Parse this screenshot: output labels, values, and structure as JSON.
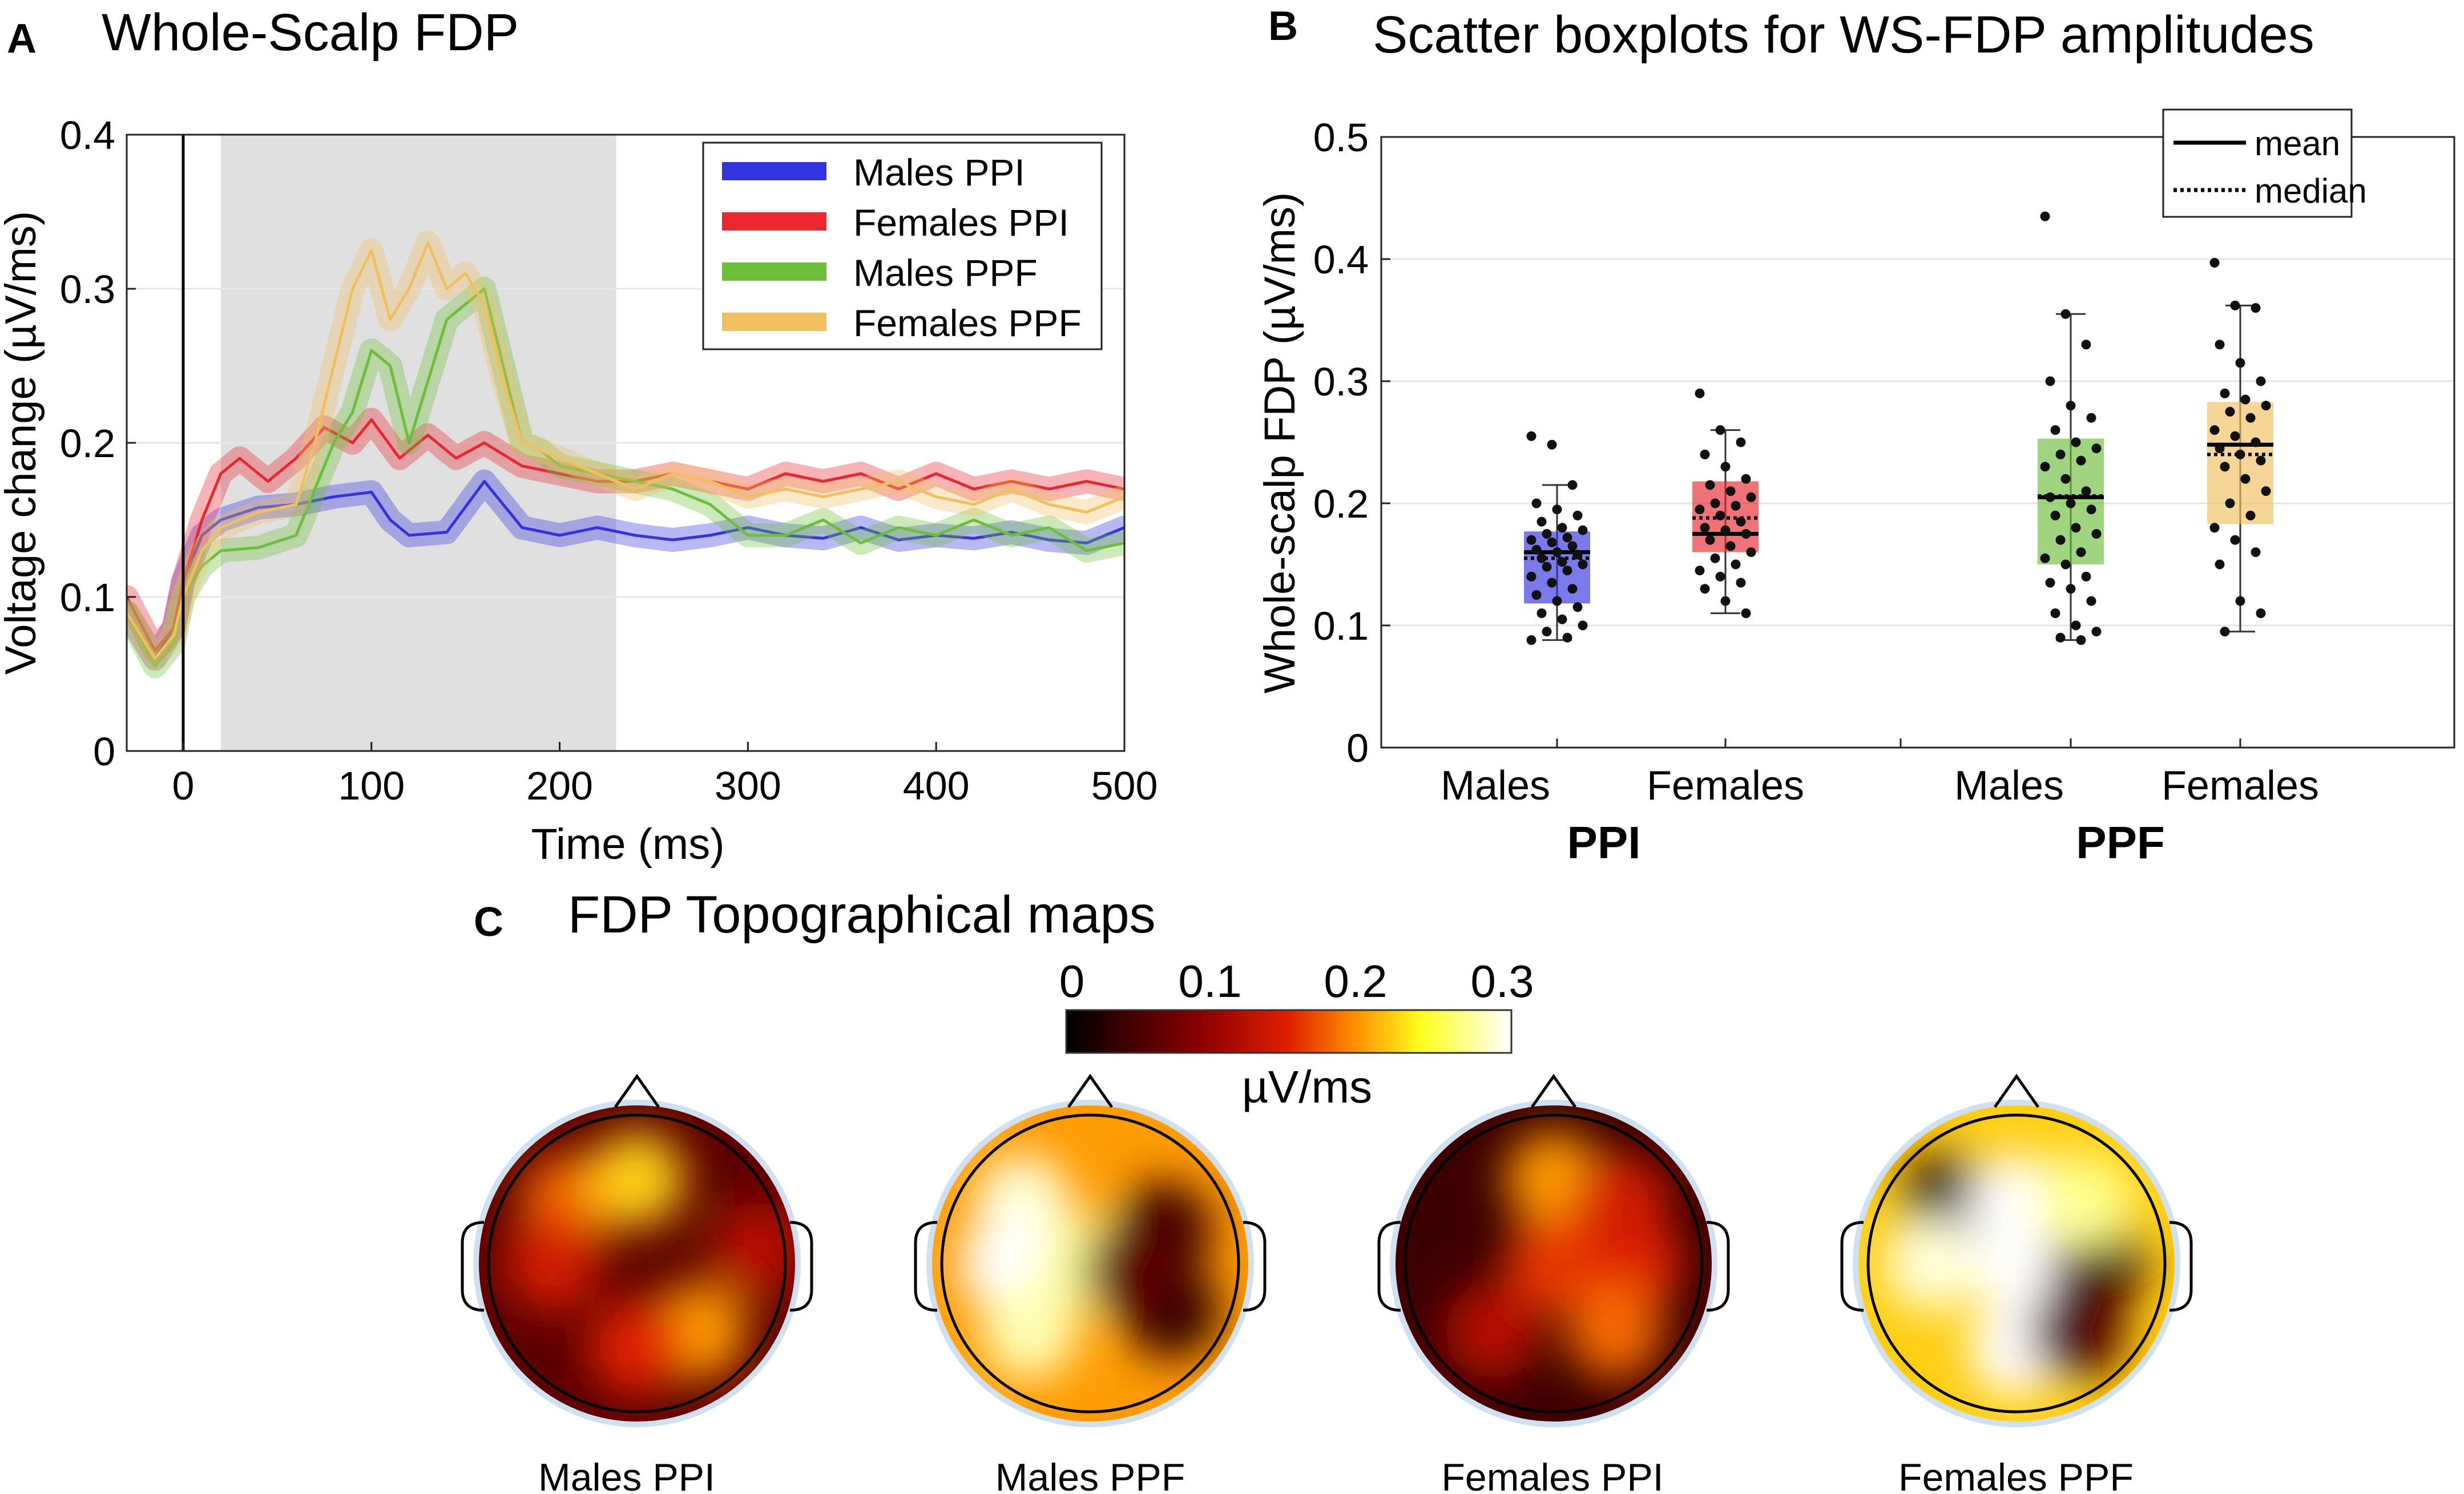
{
  "panels": {
    "a": {
      "letter": "A",
      "title": "Whole-Scalp FDP"
    },
    "b": {
      "letter": "B",
      "title": "Scatter boxplots for WS-FDP amplitudes"
    },
    "c": {
      "letter": "C",
      "title": "FDP Topographical maps"
    }
  },
  "colors": {
    "males_ppi": "#3333e0",
    "females_ppi": "#e8282e",
    "males_ppf": "#6cbf3a",
    "females_ppf": "#f0c060",
    "shade": "#e0e0e0"
  },
  "chart_data": [
    {
      "id": "whole_scalp_fdp",
      "type": "line",
      "title": "Whole-Scalp FDP",
      "xlabel": "Time (ms)",
      "ylabel": "Voltage change (µV/ms)",
      "xlim": [
        -30,
        500
      ],
      "ylim": [
        0,
        0.4
      ],
      "xticks": [
        0,
        100,
        200,
        300,
        400,
        500
      ],
      "yticks": [
        0,
        0.1,
        0.2,
        0.3,
        0.4
      ],
      "shaded_window_ms": [
        20,
        230
      ],
      "legend": "top-right",
      "series": [
        {
          "name": "Males PPI",
          "color": "#3333e0",
          "x": [
            -30,
            -15,
            -5,
            0,
            10,
            20,
            40,
            60,
            80,
            100,
            110,
            120,
            140,
            160,
            170,
            180,
            200,
            220,
            240,
            260,
            280,
            300,
            320,
            340,
            360,
            380,
            400,
            420,
            440,
            460,
            480,
            500
          ],
          "y": [
            0.09,
            0.06,
            0.08,
            0.11,
            0.14,
            0.15,
            0.158,
            0.16,
            0.165,
            0.168,
            0.15,
            0.14,
            0.142,
            0.175,
            0.16,
            0.145,
            0.14,
            0.145,
            0.14,
            0.137,
            0.14,
            0.145,
            0.14,
            0.138,
            0.145,
            0.137,
            0.14,
            0.138,
            0.142,
            0.137,
            0.135,
            0.145
          ]
        },
        {
          "name": "Females PPI",
          "color": "#e8282e",
          "x": [
            -30,
            -15,
            -5,
            0,
            10,
            20,
            30,
            45,
            60,
            75,
            90,
            100,
            115,
            130,
            145,
            160,
            180,
            200,
            220,
            240,
            260,
            280,
            300,
            320,
            340,
            360,
            380,
            400,
            420,
            440,
            460,
            480,
            500
          ],
          "y": [
            0.1,
            0.065,
            0.08,
            0.11,
            0.15,
            0.18,
            0.19,
            0.175,
            0.19,
            0.21,
            0.2,
            0.215,
            0.19,
            0.205,
            0.19,
            0.2,
            0.185,
            0.18,
            0.175,
            0.175,
            0.18,
            0.175,
            0.17,
            0.18,
            0.175,
            0.18,
            0.17,
            0.18,
            0.17,
            0.175,
            0.17,
            0.175,
            0.17
          ]
        },
        {
          "name": "Males PPF",
          "color": "#6cbf3a",
          "x": [
            -30,
            -15,
            -5,
            0,
            10,
            20,
            40,
            60,
            70,
            80,
            90,
            100,
            110,
            120,
            130,
            140,
            150,
            160,
            170,
            180,
            190,
            200,
            220,
            240,
            260,
            280,
            300,
            320,
            340,
            360,
            380,
            400,
            420,
            440,
            460,
            480,
            500
          ],
          "y": [
            0.09,
            0.055,
            0.07,
            0.1,
            0.12,
            0.13,
            0.132,
            0.14,
            0.17,
            0.2,
            0.22,
            0.26,
            0.25,
            0.2,
            0.24,
            0.28,
            0.29,
            0.3,
            0.25,
            0.2,
            0.195,
            0.185,
            0.18,
            0.175,
            0.17,
            0.16,
            0.14,
            0.14,
            0.15,
            0.135,
            0.145,
            0.14,
            0.15,
            0.14,
            0.145,
            0.13,
            0.135
          ]
        },
        {
          "name": "Females PPF",
          "color": "#f0c060",
          "x": [
            -30,
            -15,
            -5,
            0,
            10,
            20,
            40,
            60,
            70,
            80,
            90,
            100,
            110,
            120,
            130,
            140,
            150,
            160,
            170,
            180,
            190,
            200,
            220,
            240,
            260,
            280,
            300,
            320,
            340,
            360,
            380,
            400,
            420,
            440,
            460,
            480,
            500
          ],
          "y": [
            0.09,
            0.06,
            0.075,
            0.1,
            0.13,
            0.145,
            0.155,
            0.16,
            0.2,
            0.25,
            0.3,
            0.325,
            0.28,
            0.3,
            0.33,
            0.3,
            0.31,
            0.29,
            0.24,
            0.2,
            0.195,
            0.19,
            0.18,
            0.17,
            0.18,
            0.175,
            0.165,
            0.17,
            0.165,
            0.17,
            0.175,
            0.165,
            0.16,
            0.17,
            0.16,
            0.155,
            0.165
          ]
        }
      ]
    },
    {
      "id": "scatter_boxplots",
      "type": "scatter",
      "title": "Scatter boxplots for WS-FDP amplitudes",
      "ylabel": "Whole-scalp FDP (µV/ms)",
      "ylim": [
        0,
        0.5
      ],
      "yticks": [
        0,
        0.1,
        0.2,
        0.3,
        0.4,
        0.5
      ],
      "legend": "top-right",
      "legend_entries": [
        {
          "label": "mean",
          "style": "solid"
        },
        {
          "label": "median",
          "style": "dotted"
        }
      ],
      "groups": [
        {
          "label": "PPI",
          "categories": [
            "Males",
            "Females"
          ]
        },
        {
          "label": "PPF",
          "categories": [
            "Males",
            "Females"
          ]
        }
      ],
      "boxes": [
        {
          "name": "Males PPI",
          "color": "#3333e0",
          "q1": 0.118,
          "q3": 0.177,
          "mean": 0.16,
          "median": 0.155,
          "whisker_low": 0.088,
          "whisker_high": 0.215,
          "points": [
            0.255,
            0.248,
            0.215,
            0.2,
            0.195,
            0.19,
            0.185,
            0.18,
            0.178,
            0.175,
            0.172,
            0.17,
            0.168,
            0.165,
            0.162,
            0.16,
            0.158,
            0.155,
            0.152,
            0.15,
            0.148,
            0.145,
            0.14,
            0.135,
            0.13,
            0.125,
            0.12,
            0.115,
            0.11,
            0.105,
            0.1,
            0.095,
            0.09,
            0.088
          ]
        },
        {
          "name": "Females PPI",
          "color": "#e8282e",
          "q1": 0.16,
          "q3": 0.218,
          "mean": 0.175,
          "median": 0.188,
          "whisker_low": 0.11,
          "whisker_high": 0.26,
          "points": [
            0.29,
            0.26,
            0.25,
            0.24,
            0.23,
            0.22,
            0.215,
            0.21,
            0.205,
            0.2,
            0.198,
            0.195,
            0.19,
            0.185,
            0.18,
            0.178,
            0.175,
            0.17,
            0.165,
            0.16,
            0.155,
            0.15,
            0.145,
            0.14,
            0.135,
            0.13,
            0.12,
            0.11
          ]
        },
        {
          "name": "Males PPF",
          "color": "#6cbf3a",
          "q1": 0.15,
          "q3": 0.253,
          "mean": 0.205,
          "median": 0.206,
          "whisker_low": 0.088,
          "whisker_high": 0.355,
          "points": [
            0.435,
            0.355,
            0.33,
            0.3,
            0.28,
            0.27,
            0.26,
            0.25,
            0.245,
            0.24,
            0.235,
            0.23,
            0.22,
            0.21,
            0.205,
            0.2,
            0.195,
            0.19,
            0.18,
            0.175,
            0.17,
            0.16,
            0.155,
            0.15,
            0.14,
            0.135,
            0.13,
            0.12,
            0.11,
            0.1,
            0.095,
            0.09,
            0.088
          ]
        },
        {
          "name": "Females PPF",
          "color": "#f0c060",
          "q1": 0.183,
          "q3": 0.283,
          "mean": 0.248,
          "median": 0.24,
          "whisker_low": 0.095,
          "whisker_high": 0.362,
          "points": [
            0.397,
            0.362,
            0.36,
            0.33,
            0.315,
            0.3,
            0.29,
            0.285,
            0.28,
            0.275,
            0.27,
            0.26,
            0.255,
            0.25,
            0.245,
            0.24,
            0.235,
            0.23,
            0.22,
            0.21,
            0.2,
            0.19,
            0.18,
            0.17,
            0.16,
            0.15,
            0.12,
            0.11,
            0.095
          ]
        }
      ]
    },
    {
      "id": "topo_maps",
      "type": "heatmap",
      "title": "FDP Topographical maps",
      "colorbar": {
        "label": "µV/ms",
        "range": [
          0,
          0.3
        ],
        "ticks": [
          "0",
          "0.1",
          "0.2",
          "0.3"
        ],
        "colormap": "hot"
      },
      "maps": [
        {
          "label": "Males PPI",
          "base": 0.06,
          "spots": [
            {
              "loc": "upper-left",
              "v": 0.18
            },
            {
              "loc": "top",
              "v": 0.22
            },
            {
              "loc": "left-mid",
              "v": 0.14
            },
            {
              "loc": "lower-right",
              "v": 0.2
            },
            {
              "loc": "bottom-center",
              "v": 0.15
            },
            {
              "loc": "right-edge",
              "v": 0.12
            }
          ]
        },
        {
          "label": "Males PPF",
          "base": 0.2,
          "spots": [
            {
              "loc": "upper-left",
              "v": 0.29
            },
            {
              "loc": "left-mid",
              "v": 0.3
            },
            {
              "loc": "center",
              "v": 0.27
            },
            {
              "loc": "lower-left",
              "v": 0.28
            },
            {
              "loc": "right-upper",
              "v": 0.04
            },
            {
              "loc": "right-lower",
              "v": 0.03
            },
            {
              "loc": "center-right",
              "v": 0.06
            }
          ]
        },
        {
          "label": "Females PPI",
          "base": 0.04,
          "spots": [
            {
              "loc": "top",
              "v": 0.2
            },
            {
              "loc": "center",
              "v": 0.16
            },
            {
              "loc": "right-mid",
              "v": 0.15
            },
            {
              "loc": "lower-right",
              "v": 0.18
            },
            {
              "loc": "lower-left",
              "v": 0.12
            },
            {
              "loc": "upper-right",
              "v": 0.14
            }
          ]
        },
        {
          "label": "Females PPF",
          "base": 0.22,
          "spots": [
            {
              "loc": "upper-left",
              "v": 0.03
            },
            {
              "loc": "top-center",
              "v": 0.3
            },
            {
              "loc": "center",
              "v": 0.3
            },
            {
              "loc": "bottom-center",
              "v": 0.32
            },
            {
              "loc": "left-mid",
              "v": 0.29
            },
            {
              "loc": "right-mid",
              "v": 0.04
            },
            {
              "loc": "lower-right",
              "v": 0.05
            },
            {
              "loc": "upper-right",
              "v": 0.27
            }
          ]
        }
      ]
    }
  ]
}
